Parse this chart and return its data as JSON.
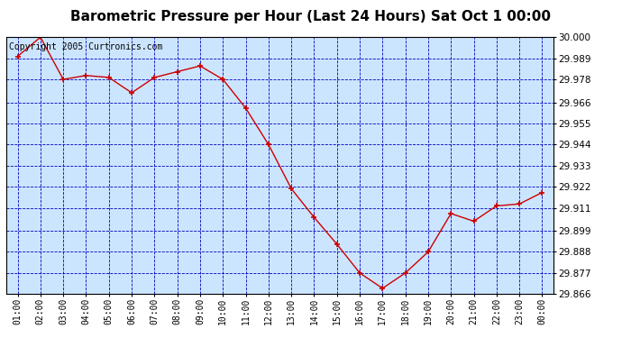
{
  "title": "Barometric Pressure per Hour (Last 24 Hours) Sat Oct 1 00:00",
  "copyright": "Copyright 2005 Curtronics.com",
  "x_labels": [
    "01:00",
    "02:00",
    "03:00",
    "04:00",
    "05:00",
    "06:00",
    "07:00",
    "08:00",
    "09:00",
    "10:00",
    "11:00",
    "12:00",
    "13:00",
    "14:00",
    "15:00",
    "16:00",
    "17:00",
    "18:00",
    "19:00",
    "20:00",
    "21:00",
    "22:00",
    "23:00",
    "00:00"
  ],
  "y_values": [
    29.99,
    30.0,
    29.978,
    29.98,
    29.979,
    29.971,
    29.979,
    29.982,
    29.985,
    29.978,
    29.963,
    29.944,
    29.921,
    29.906,
    29.892,
    29.877,
    29.869,
    29.877,
    29.888,
    29.908,
    29.904,
    29.912,
    29.913,
    29.919
  ],
  "ylim_min": 29.866,
  "ylim_max": 30.0,
  "yticks": [
    30.0,
    29.989,
    29.978,
    29.966,
    29.955,
    29.944,
    29.933,
    29.922,
    29.911,
    29.899,
    29.888,
    29.877,
    29.866
  ],
  "line_color": "#cc0000",
  "marker_color": "#cc0000",
  "plot_bg_color": "#cce5ff",
  "outer_bg_color": "#ffffff",
  "grid_color": "#0000bb",
  "title_fontsize": 11,
  "copyright_fontsize": 7,
  "tick_fontsize": 7,
  "ytick_fontsize": 7.5
}
